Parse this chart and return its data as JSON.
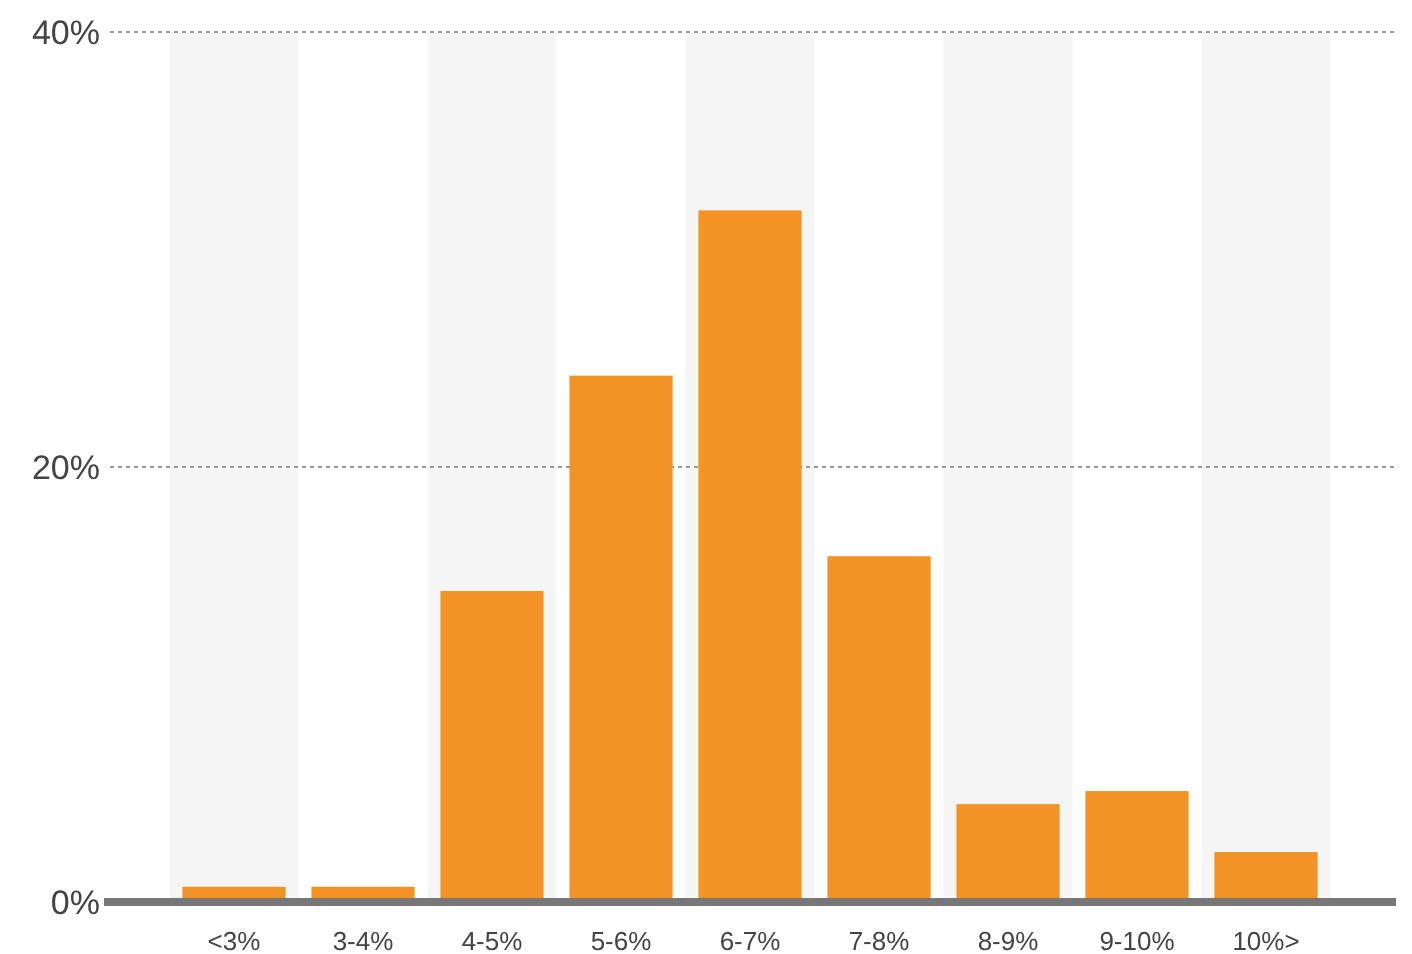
{
  "chart_data": {
    "type": "bar",
    "categories": [
      "<3%",
      "3-4%",
      "4-5%",
      "5-6%",
      "6-7%",
      "7-8%",
      "8-9%",
      "9-10%",
      "10%>"
    ],
    "values": [
      0.7,
      0.7,
      14.3,
      24.2,
      31.8,
      15.9,
      4.5,
      5.1,
      2.3
    ],
    "color": "#f39325",
    "ylim": [
      0,
      40
    ],
    "yticks": [
      {
        "value": 0,
        "label": "0%"
      },
      {
        "value": 20,
        "label": "20%"
      },
      {
        "value": 40,
        "label": "40%"
      }
    ],
    "grid": "y"
  }
}
